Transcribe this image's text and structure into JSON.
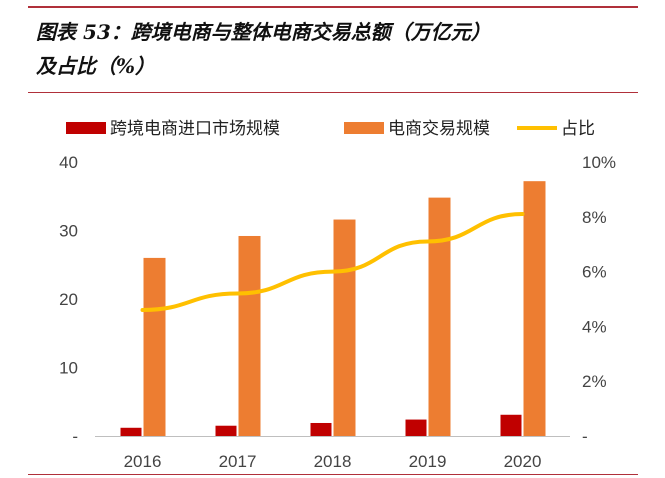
{
  "title": {
    "line1": "图表 53：跨境电商与整体电商交易总额（万亿元）",
    "line2": "及占比（%）"
  },
  "colors": {
    "rule": "#b0303a",
    "axis": "#bfbfbf",
    "tick_text": "#444444"
  },
  "chart_data": {
    "type": "bar",
    "categories": [
      "2016",
      "2017",
      "2018",
      "2019",
      "2020"
    ],
    "series": [
      {
        "name": "跨境电商进口市场规模",
        "type": "bar",
        "axis": "left",
        "color": "#c00000",
        "values": [
          1.2,
          1.5,
          1.9,
          2.4,
          3.1
        ]
      },
      {
        "name": "电商交易规模",
        "type": "bar",
        "axis": "left",
        "color": "#ed7d31",
        "values": [
          26,
          29.2,
          31.6,
          34.8,
          37.2
        ]
      },
      {
        "name": "占比",
        "type": "line",
        "axis": "right",
        "color": "#ffc000",
        "values": [
          4.6,
          5.2,
          6.0,
          7.1,
          8.1
        ]
      }
    ],
    "y_left": {
      "min": 0,
      "max": 40,
      "ticks": [
        0,
        10,
        20,
        30,
        40
      ],
      "tick_labels": [
        "-",
        "10",
        "20",
        "30",
        "40"
      ]
    },
    "y_right": {
      "min": 0,
      "max": 10,
      "ticks": [
        0,
        2,
        4,
        6,
        8,
        10
      ],
      "tick_labels": [
        "-",
        "2%",
        "4%",
        "6%",
        "8%",
        "10%"
      ]
    },
    "grid": false,
    "legend_position": "top"
  }
}
